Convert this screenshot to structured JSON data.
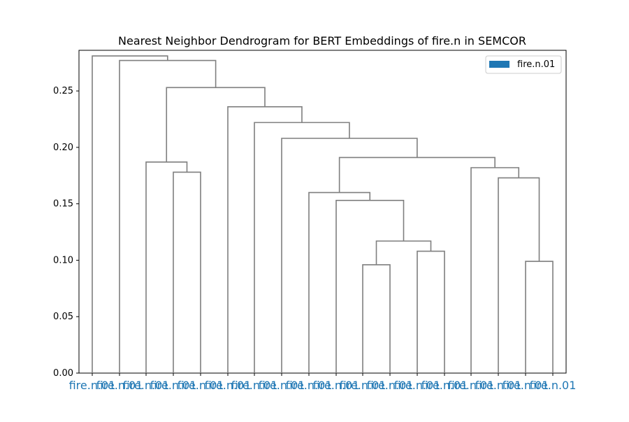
{
  "chart_data": {
    "type": "dendrogram",
    "title": "Nearest Neighbor Dendrogram for BERT Embeddings of fire.n in SEMCOR",
    "xlabel": "",
    "ylabel": "",
    "ylim": [
      0,
      0.286
    ],
    "yticks": [
      0.0,
      0.05,
      0.1,
      0.15,
      0.2,
      0.25
    ],
    "ytick_labels": [
      "0.00",
      "0.05",
      "0.10",
      "0.15",
      "0.20",
      "0.25"
    ],
    "grid": false,
    "legend": {
      "placement": "top-right",
      "entries": [
        {
          "label": "fire.n.01",
          "color": "#1f77b4"
        }
      ]
    },
    "leaf_color": "#1f77b4",
    "link_color": "#7f7f7f",
    "leaves": [
      "fire.n.01",
      "fire.n.01",
      "fire.n.01",
      "fire.n.01",
      "fire.n.01",
      "fire.n.01",
      "fire.n.01",
      "fire.n.01",
      "fire.n.01",
      "fire.n.01",
      "fire.n.01",
      "fire.n.01",
      "fire.n.01",
      "fire.n.01",
      "fire.n.01",
      "fire.n.01",
      "fire.n.01"
    ],
    "merges": [
      {
        "a": 9,
        "b": 10,
        "height": 0.096
      },
      {
        "a": 15,
        "b": 16,
        "height": 0.099
      },
      {
        "a": 11,
        "b": 12,
        "height": 0.108
      },
      {
        "a": 17,
        "b": 19,
        "height": 0.117
      },
      {
        "a": 8,
        "b": 20,
        "height": 0.153
      },
      {
        "a": 7,
        "b": 21,
        "height": 0.16
      },
      {
        "a": 14,
        "b": 18,
        "height": 0.173
      },
      {
        "a": 3,
        "b": 4,
        "height": 0.178
      },
      {
        "a": 13,
        "b": 23,
        "height": 0.182
      },
      {
        "a": 2,
        "b": 24,
        "height": 0.187
      },
      {
        "a": 22,
        "b": 25,
        "height": 0.191
      },
      {
        "a": 6,
        "b": 27,
        "height": 0.208
      },
      {
        "a": 5,
        "b": 28,
        "height": 0.222
      },
      {
        "a": 4.9,
        "b": 0,
        "height": 0
      }
    ]
  }
}
